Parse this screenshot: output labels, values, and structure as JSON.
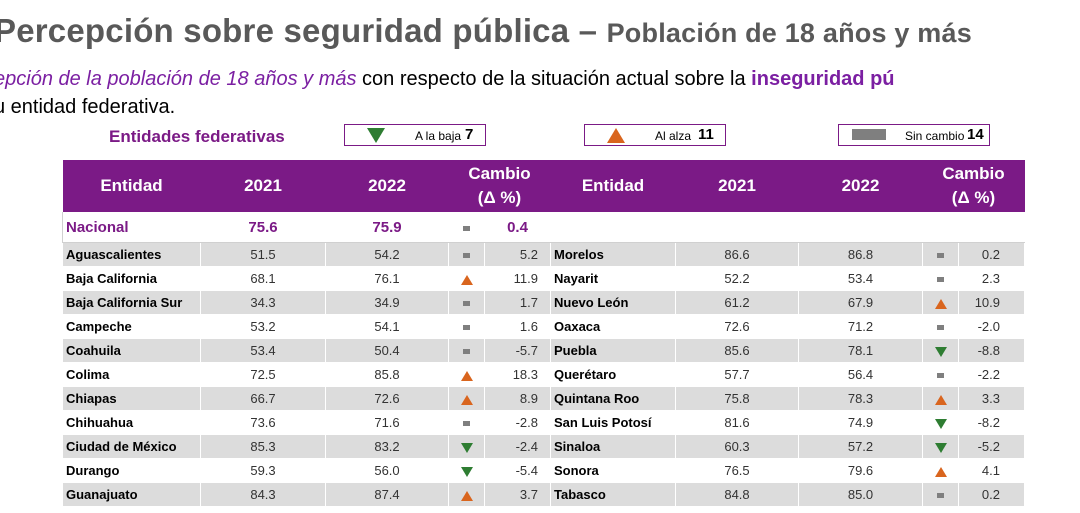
{
  "header": {
    "title_main": "Percepción sobre seguridad pública –",
    "title_sub": "Población de 18 años y más",
    "subtitle_part1": "epción de la población de 18 años y más",
    "subtitle_part2": " con respecto de la situación actual sobre la ",
    "subtitle_part3": "inseguridad pú",
    "subtitle_line2": "u entidad federativa."
  },
  "legend": {
    "title": "Entidades federativas",
    "down_label": "A la baja",
    "down_count": "7",
    "up_label": "Al alza",
    "up_count": "11",
    "same_label": "Sin cambio",
    "same_count": "14"
  },
  "table": {
    "headers": {
      "entidad": "Entidad",
      "y2021": "2021",
      "y2022": "2022",
      "cambio": "Cambio",
      "delta": "(Δ %)"
    },
    "national": {
      "name": "Nacional",
      "v2021": "75.6",
      "v2022": "75.9",
      "trend": "same",
      "change": "0.4"
    },
    "rows": [
      {
        "left": {
          "name": "Aguascalientes",
          "v2021": "51.5",
          "v2022": "54.2",
          "trend": "same",
          "change": "5.2"
        },
        "right": {
          "name": "Morelos",
          "v2021": "86.6",
          "v2022": "86.8",
          "trend": "same",
          "change": "0.2"
        }
      },
      {
        "left": {
          "name": "Baja California",
          "v2021": "68.1",
          "v2022": "76.1",
          "trend": "up",
          "change": "11.9"
        },
        "right": {
          "name": "Nayarit",
          "v2021": "52.2",
          "v2022": "53.4",
          "trend": "same",
          "change": "2.3"
        }
      },
      {
        "left": {
          "name": "Baja California Sur",
          "v2021": "34.3",
          "v2022": "34.9",
          "trend": "same",
          "change": "1.7"
        },
        "right": {
          "name": "Nuevo León",
          "v2021": "61.2",
          "v2022": "67.9",
          "trend": "up",
          "change": "10.9"
        }
      },
      {
        "left": {
          "name": "Campeche",
          "v2021": "53.2",
          "v2022": "54.1",
          "trend": "same",
          "change": "1.6"
        },
        "right": {
          "name": "Oaxaca",
          "v2021": "72.6",
          "v2022": "71.2",
          "trend": "same",
          "change": "-2.0"
        }
      },
      {
        "left": {
          "name": "Coahuila",
          "v2021": "53.4",
          "v2022": "50.4",
          "trend": "same",
          "change": "-5.7"
        },
        "right": {
          "name": "Puebla",
          "v2021": "85.6",
          "v2022": "78.1",
          "trend": "down",
          "change": "-8.8"
        }
      },
      {
        "left": {
          "name": "Colima",
          "v2021": "72.5",
          "v2022": "85.8",
          "trend": "up",
          "change": "18.3"
        },
        "right": {
          "name": "Querétaro",
          "v2021": "57.7",
          "v2022": "56.4",
          "trend": "same",
          "change": "-2.2"
        }
      },
      {
        "left": {
          "name": "Chiapas",
          "v2021": "66.7",
          "v2022": "72.6",
          "trend": "up",
          "change": "8.9"
        },
        "right": {
          "name": "Quintana Roo",
          "v2021": "75.8",
          "v2022": "78.3",
          "trend": "up",
          "change": "3.3"
        }
      },
      {
        "left": {
          "name": "Chihuahua",
          "v2021": "73.6",
          "v2022": "71.6",
          "trend": "same",
          "change": "-2.8"
        },
        "right": {
          "name": "San Luis Potosí",
          "v2021": "81.6",
          "v2022": "74.9",
          "trend": "down",
          "change": "-8.2"
        }
      },
      {
        "left": {
          "name": "Ciudad de México",
          "v2021": "85.3",
          "v2022": "83.2",
          "trend": "down",
          "change": "-2.4"
        },
        "right": {
          "name": "Sinaloa",
          "v2021": "60.3",
          "v2022": "57.2",
          "trend": "down",
          "change": "-5.2"
        }
      },
      {
        "left": {
          "name": "Durango",
          "v2021": "59.3",
          "v2022": "56.0",
          "trend": "down",
          "change": "-5.4"
        },
        "right": {
          "name": "Sonora",
          "v2021": "76.5",
          "v2022": "79.6",
          "trend": "up",
          "change": "4.1"
        }
      },
      {
        "left": {
          "name": "Guanajuato",
          "v2021": "84.3",
          "v2022": "87.4",
          "trend": "up",
          "change": "3.7"
        },
        "right": {
          "name": "Tabasco",
          "v2021": "84.8",
          "v2022": "85.0",
          "trend": "same",
          "change": "0.2"
        }
      }
    ]
  },
  "colors": {
    "accent": "#7b1a86",
    "up": "#d9651e",
    "down": "#2e7d32",
    "same": "#7f7f7f",
    "stripe": "#dcdcdc"
  }
}
